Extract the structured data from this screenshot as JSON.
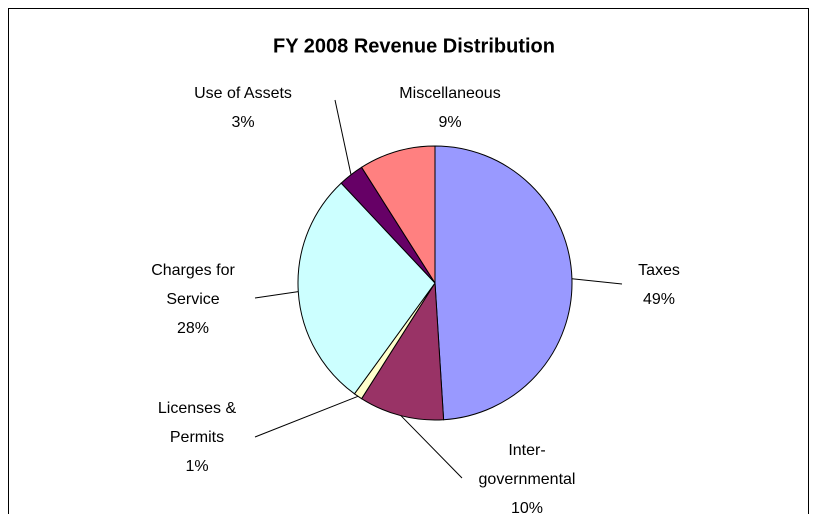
{
  "chart_data": {
    "type": "pie",
    "title": "FY 2008 Revenue Distribution",
    "categories": [
      "Taxes",
      "Inter-\ngovernmental",
      "Licenses &\nPermits",
      "Charges for\nService",
      "Use of Assets",
      "Miscellaneous"
    ],
    "values": [
      49,
      10,
      1,
      28,
      3,
      9
    ],
    "value_labels": [
      "49%",
      "10%",
      "1%",
      "28%",
      "3%",
      "9%"
    ],
    "colors": [
      "#9999ff",
      "#993366",
      "#ffffcc",
      "#ccffff",
      "#660066",
      "#ff8080"
    ]
  }
}
